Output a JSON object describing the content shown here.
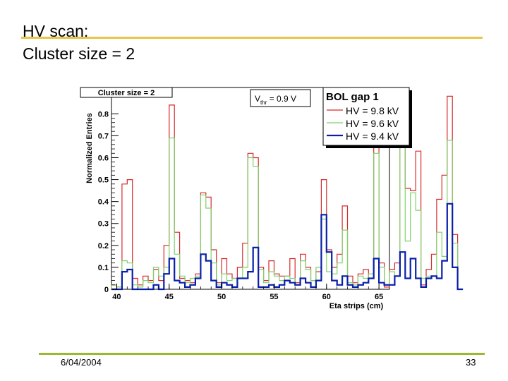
{
  "slide": {
    "title_line1": "HV scan:",
    "title_line2": "Cluster size = 2",
    "date": "6/04/2004",
    "page_number": "33"
  },
  "colors": {
    "title_rule": "#e8c547",
    "footer_rule": "#9ab832",
    "series_9p8": "#d42a2a",
    "series_9p6": "#7fd16b",
    "series_9p4": "#0a1fa8"
  },
  "chart_data": {
    "type": "histogram",
    "title": "Cluster size = 2",
    "xlabel": "Eta strips (cm)",
    "ylabel": "Normalized Entries",
    "xlim": [
      39.5,
      66.0
    ],
    "ylim": [
      0,
      0.92
    ],
    "x_ticks": [
      40,
      45,
      50,
      55,
      60,
      65
    ],
    "y_ticks": [
      0,
      0.1,
      0.2,
      0.3,
      0.4,
      0.5,
      0.6,
      0.7,
      0.8
    ],
    "annotation": {
      "main": "V",
      "sub": "thr",
      "rest": " = 0.9 V"
    },
    "legend": {
      "title": "BOL gap 1",
      "position": "top-right"
    },
    "bin_width": 0.5,
    "x_start": 39.5,
    "series": [
      {
        "name": "HV = 9.8 kV",
        "color": "#d42a2a",
        "values": [
          0.02,
          0.01,
          0.48,
          0.5,
          0.05,
          0.02,
          0.06,
          0.04,
          0.09,
          0.04,
          0.2,
          0.84,
          0.26,
          0.05,
          0.04,
          0.03,
          0.07,
          0.44,
          0.42,
          0.18,
          0.03,
          0.14,
          0.07,
          0.05,
          0.1,
          0.21,
          0.62,
          0.6,
          0.1,
          0.04,
          0.13,
          0.07,
          0.06,
          0.06,
          0.14,
          0.03,
          0.16,
          0.1,
          0.04,
          0.08,
          0.5,
          0.18,
          0.1,
          0.16,
          0.38,
          0.06,
          0.03,
          0.07,
          0.09,
          0.05,
          0.78,
          0.12,
          0.01,
          0.09,
          0.12,
          0.78,
          0.46,
          0.45,
          0.63,
          0.02,
          0.09,
          0.16,
          0.41,
          0.52,
          0.88,
          0.25,
          0.0
        ]
      },
      {
        "name": "HV = 9.6 kV",
        "color": "#7fd16b",
        "values": [
          0.02,
          0.01,
          0.13,
          0.12,
          0.02,
          0.01,
          0.04,
          0.03,
          0.1,
          0.06,
          0.1,
          0.69,
          0.16,
          0.06,
          0.03,
          0.05,
          0.06,
          0.43,
          0.37,
          0.12,
          0.02,
          0.07,
          0.04,
          0.05,
          0.05,
          0.1,
          0.6,
          0.56,
          0.09,
          0.03,
          0.08,
          0.06,
          0.04,
          0.06,
          0.05,
          0.02,
          0.13,
          0.09,
          0.04,
          0.1,
          0.32,
          0.08,
          0.07,
          0.12,
          0.27,
          0.03,
          0.02,
          0.06,
          0.05,
          0.07,
          0.62,
          0.1,
          0.02,
          0.08,
          0.06,
          0.66,
          0.22,
          0.44,
          0.36,
          0.05,
          0.06,
          0.06,
          0.26,
          0.15,
          0.68,
          0.21,
          0.0
        ]
      },
      {
        "name": "HV = 9.4 kV",
        "color": "#0a1fa8",
        "values": [
          0.0,
          0.0,
          0.08,
          0.09,
          0.0,
          0.0,
          0.0,
          0.0,
          0.02,
          0.0,
          0.07,
          0.14,
          0.04,
          0.03,
          0.01,
          0.02,
          0.05,
          0.16,
          0.13,
          0.04,
          0.01,
          0.03,
          0.02,
          0.01,
          0.05,
          0.05,
          0.08,
          0.19,
          0.01,
          0.01,
          0.02,
          0.01,
          0.02,
          0.04,
          0.03,
          0.02,
          0.05,
          0.03,
          0.01,
          0.04,
          0.34,
          0.17,
          0.04,
          0.02,
          0.06,
          0.02,
          0.01,
          0.02,
          0.03,
          0.05,
          0.14,
          0.03,
          0.02,
          0.02,
          0.06,
          0.17,
          0.05,
          0.14,
          0.05,
          0.01,
          0.05,
          0.06,
          0.05,
          0.13,
          0.39,
          0.1,
          0.0
        ]
      }
    ]
  }
}
